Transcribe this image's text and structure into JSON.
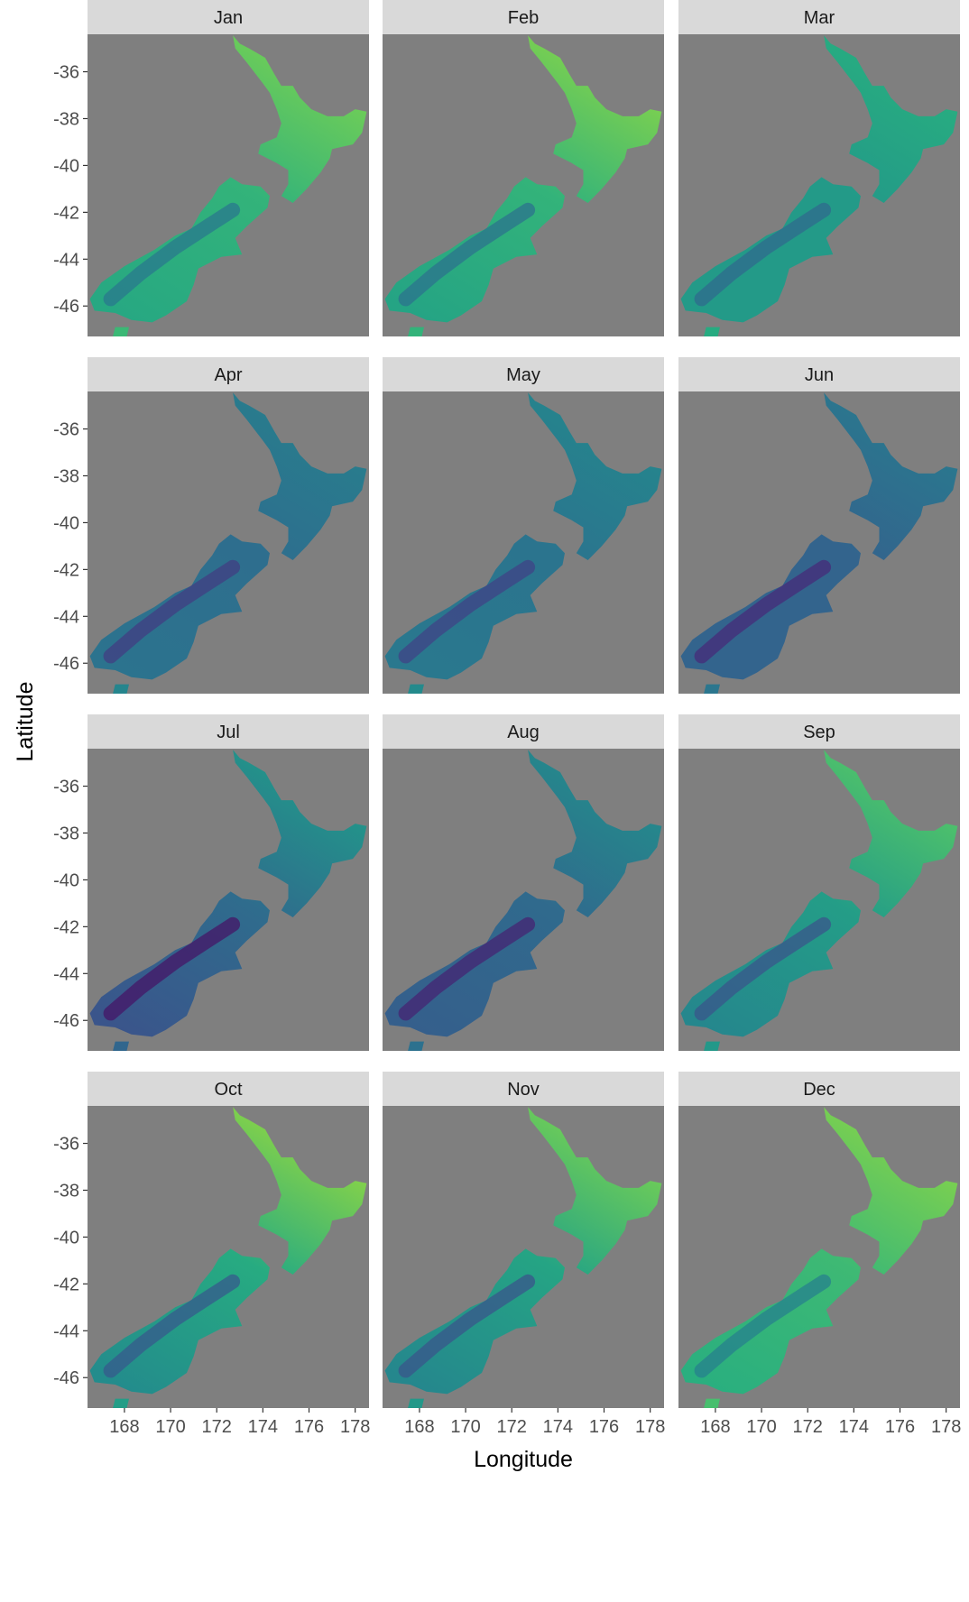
{
  "chart_data": {
    "type": "heatmap",
    "title": "",
    "xlabel": "Longitude",
    "ylabel": "Latitude",
    "xlim": [
      166.4,
      178.6
    ],
    "ylim": [
      -47.3,
      -34.4
    ],
    "x_ticks": [
      168,
      170,
      172,
      174,
      176,
      178
    ],
    "y_ticks": [
      -36,
      -38,
      -40,
      -42,
      -44,
      -46
    ],
    "x_tick_labels": [
      "168",
      "170",
      "172",
      "174",
      "176",
      "178"
    ],
    "y_tick_labels": [
      "-36",
      "-38",
      "-40",
      "-42",
      "-44",
      "-46"
    ],
    "facet_layout": {
      "rows": 4,
      "cols": 3
    },
    "legend": "none",
    "colors": {
      "panel_background": "#7f7f7f",
      "strip_background": "#d9d9d9",
      "colormap": [
        "#440154",
        "#472d7b",
        "#3b528b",
        "#2c728e",
        "#21918c",
        "#28ae80",
        "#5ec962",
        "#addc30",
        "#fde725"
      ]
    },
    "panels": [
      {
        "label": "Jan",
        "north_level": 0.78,
        "south_level": 0.52
      },
      {
        "label": "Feb",
        "north_level": 0.8,
        "south_level": 0.5
      },
      {
        "label": "Mar",
        "north_level": 0.62,
        "south_level": 0.46
      },
      {
        "label": "Apr",
        "north_level": 0.42,
        "south_level": 0.3
      },
      {
        "label": "May",
        "north_level": 0.45,
        "south_level": 0.32
      },
      {
        "label": "Jun",
        "north_level": 0.4,
        "south_level": 0.24
      },
      {
        "label": "Jul",
        "north_level": 0.52,
        "south_level": 0.18
      },
      {
        "label": "Aug",
        "north_level": 0.47,
        "south_level": 0.22
      },
      {
        "label": "Sep",
        "north_level": 0.72,
        "south_level": 0.38
      },
      {
        "label": "Oct",
        "north_level": 0.82,
        "south_level": 0.4
      },
      {
        "label": "Nov",
        "north_level": 0.78,
        "south_level": 0.38
      },
      {
        "label": "Dec",
        "north_level": 0.8,
        "south_level": 0.55
      }
    ]
  }
}
